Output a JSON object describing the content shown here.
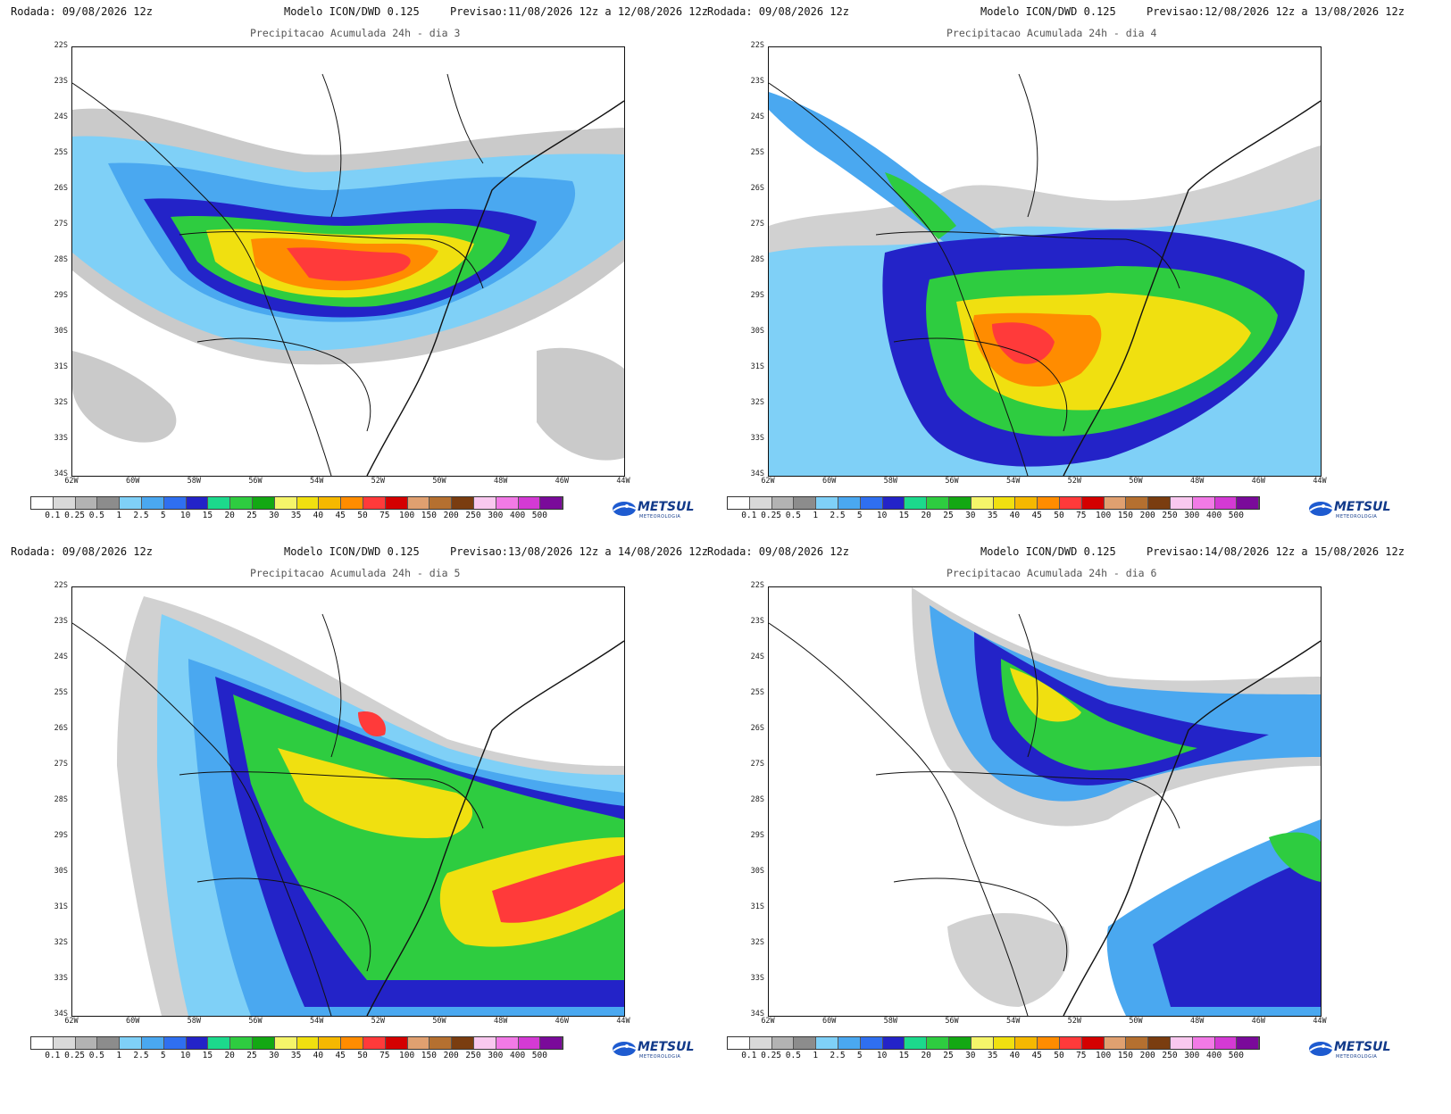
{
  "labels": {
    "run": "Rodada: 09/08/2026 12z",
    "model": "Modelo ICON/DWD 0.125"
  },
  "panels": [
    {
      "forecast": "Previsao:11/08/2026 12z a 12/08/2026 12z",
      "subtitle": "Precipitacao Acumulada 24h - dia 3"
    },
    {
      "forecast": "Previsao:12/08/2026 12z a 13/08/2026 12z",
      "subtitle": "Precipitacao Acumulada 24h - dia 4"
    },
    {
      "forecast": "Previsao:13/08/2026 12z a 14/08/2026 12z",
      "subtitle": "Precipitacao Acumulada 24h - dia 5"
    },
    {
      "forecast": "Previsao:14/08/2026 12z a 15/08/2026 12z",
      "subtitle": "Precipitacao Acumulada 24h - dia 6"
    }
  ],
  "axes": {
    "lat_labels": [
      "22S",
      "23S",
      "24S",
      "25S",
      "26S",
      "27S",
      "28S",
      "29S",
      "30S",
      "31S",
      "32S",
      "33S",
      "34S"
    ],
    "lon_labels": [
      "62W",
      "60W",
      "58W",
      "56W",
      "54W",
      "52W",
      "50W",
      "48W",
      "46W",
      "44W"
    ]
  },
  "legend": {
    "levels": [
      "0.1",
      "0.25",
      "0.5",
      "1",
      "2.5",
      "5",
      "10",
      "15",
      "20",
      "25",
      "30",
      "35",
      "40",
      "45",
      "50",
      "75",
      "100",
      "150",
      "200",
      "250",
      "300",
      "400",
      "500"
    ],
    "colors": [
      "#ffffff",
      "#d9d9d9",
      "#b3b3b3",
      "#8c8c8c",
      "#7fd0f7",
      "#4aa8f0",
      "#2f6ff0",
      "#2323c8",
      "#1cd98c",
      "#2ecc40",
      "#13a813",
      "#f5f56a",
      "#f0e010",
      "#f5b800",
      "#ff8c00",
      "#ff3a3a",
      "#d40000",
      "#e0a070",
      "#b57030",
      "#7a3d10",
      "#f9c8ef",
      "#f27ae6",
      "#d43ad4",
      "#7a0a9a"
    ]
  },
  "logo": {
    "brand": "METSUL",
    "sub": "METEOROLOGIA"
  }
}
